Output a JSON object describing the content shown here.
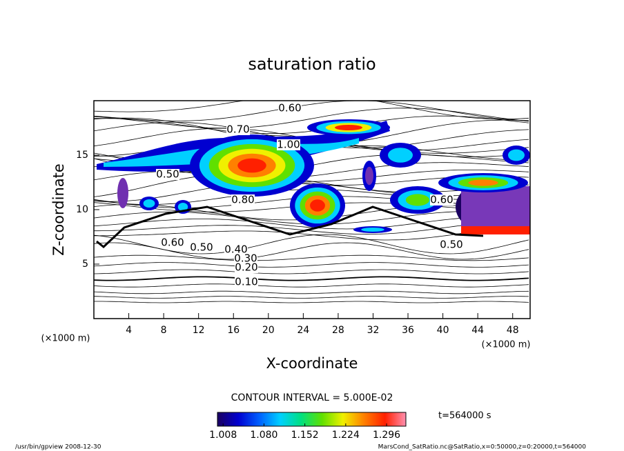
{
  "chart_data": {
    "type": "contour",
    "title": "saturation ratio",
    "x_label": "X-coordinate",
    "y_label": "Z-coordinate",
    "x_unit": "(×1000 m)",
    "y_unit": "(×1000 m)",
    "xlim": [
      0,
      50
    ],
    "xticks": [
      4,
      8,
      12,
      16,
      20,
      24,
      28,
      32,
      36,
      40,
      44,
      48
    ],
    "ylim": [
      0,
      20
    ],
    "yticks": [
      5,
      10,
      15
    ],
    "contour_labels": [
      "0.60",
      "0.70",
      "1.00",
      "0.50",
      "0.80",
      "0.60",
      "0.50",
      "0.40",
      "0.30",
      "0.20",
      "0.10",
      "0.50",
      "0.60"
    ],
    "contour_interval": "CONTOUR INTERVAL = 5.000E-02",
    "time_label": "t=564000 s",
    "colorbar": {
      "lim": [
        0.998,
        1.33
      ],
      "ticks": [
        1.008,
        {
          "value": 1.08,
          "label": "1.080"
        },
        1.152,
        1.224,
        1.296
      ],
      "colormap": [
        "#1a0060",
        "#0000d0",
        "#0060ff",
        "#00d0ff",
        "#00e080",
        "#60e000",
        "#f0f000",
        "#ff8000",
        "#ff2000",
        "#ff90b0"
      ]
    },
    "footer_left": "/usr/bin/gpview  2008-12-30",
    "footer_right": "MarsCond_SatRatio.nc@SatRatio,x=0:50000,z=0:20000,t=564000"
  }
}
